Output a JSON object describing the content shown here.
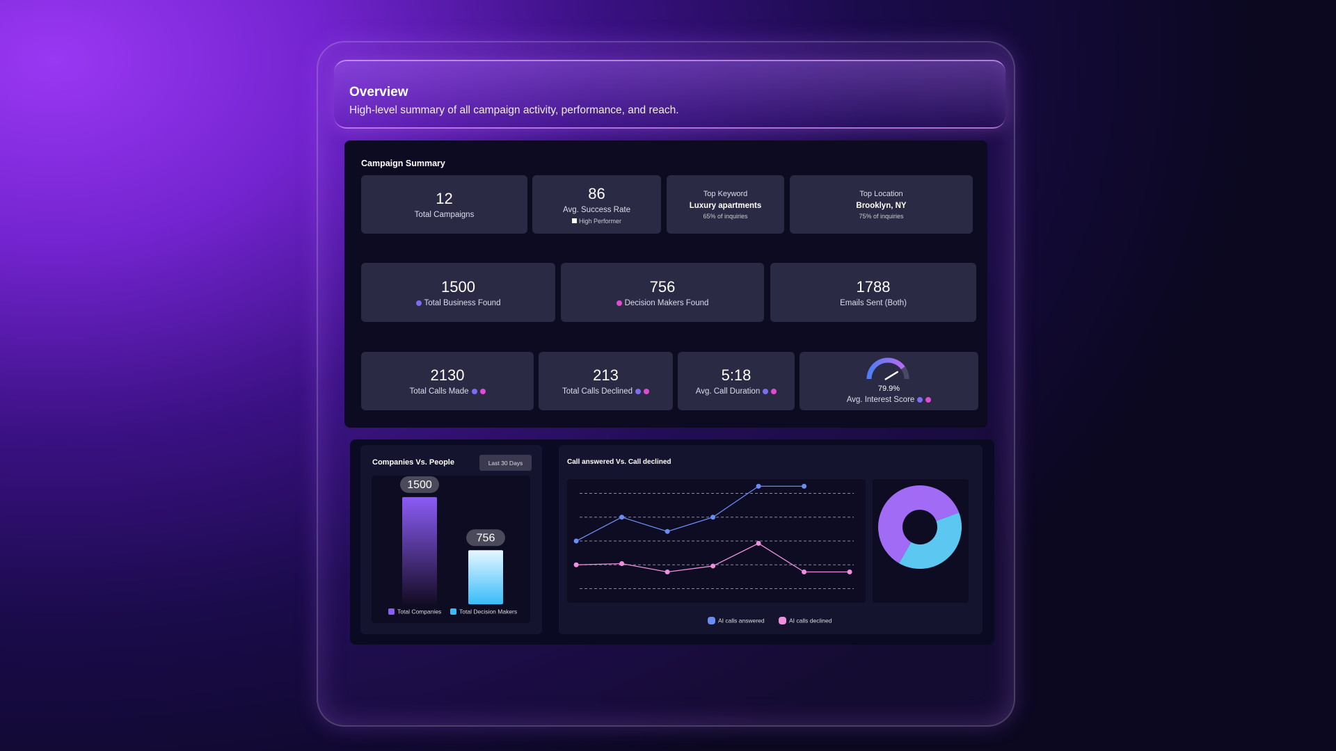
{
  "overview": {
    "title": "Overview",
    "subtitle": "High-level summary of all campaign activity, performance, and reach."
  },
  "campaign_summary": {
    "title": "Campaign Summary",
    "cards": [
      {
        "value": 12,
        "label": "Total Campaigns"
      },
      {
        "value": 86,
        "label": "Avg. Success Rate",
        "badge": "High Performer"
      },
      {
        "label": "Top Keyword",
        "value": "Luxury apartments",
        "note": "65% of inquiries"
      },
      {
        "label": "Top Location",
        "value": "Brooklyn, NY",
        "note": "75% of inquiries"
      },
      {
        "value": 1500,
        "label": "Total Business Found"
      },
      {
        "value": 756,
        "label": "Decision Makers Found"
      },
      {
        "value": 1788,
        "label": "Emails Sent (Both)"
      },
      {
        "value": 2130,
        "label": "Total Calls Made"
      },
      {
        "value": 213,
        "label": "Total Calls Declined"
      },
      {
        "value": "5:18",
        "label": "Avg. Call Duration"
      },
      {
        "value": 79.9,
        "value_label": "79.9%",
        "label": "Avg. Interest Score",
        "ylim": [
          0,
          100
        ]
      }
    ]
  },
  "chart_data": [
    {
      "type": "bar",
      "title": "Companies Vs. People",
      "filter": "Last 30 Days",
      "ylim": [
        0,
        1800
      ],
      "series": [
        {
          "name": "Total Companies",
          "color": "#8b5cf6",
          "values": [
            1500
          ]
        },
        {
          "name": "Total Decision Makers",
          "color": "#38bdf8",
          "values": [
            756
          ]
        }
      ]
    },
    {
      "type": "line",
      "title": "Call answered Vs. Call declined",
      "x": [
        0,
        1,
        2,
        3,
        4,
        5,
        6
      ],
      "xlim": [
        -0.2,
        6.35
      ],
      "ylim": [
        -0.6,
        4.6
      ],
      "yticks": [
        0,
        1,
        2,
        3,
        4
      ],
      "grid": true,
      "series": [
        {
          "name": "AI calls answered",
          "color": "#6b8cf0",
          "values": [
            2,
            3,
            2.4,
            3,
            4.3,
            4.3,
            null
          ]
        },
        {
          "name": "AI calls declined",
          "color": "#f08fe0",
          "values": [
            1,
            1.05,
            0.7,
            0.95,
            1.9,
            0.7,
            0.7
          ]
        }
      ]
    },
    {
      "type": "donut",
      "values": [
        61,
        39
      ],
      "colors": [
        "#a26bf5",
        "#5cc8f2"
      ]
    }
  ]
}
